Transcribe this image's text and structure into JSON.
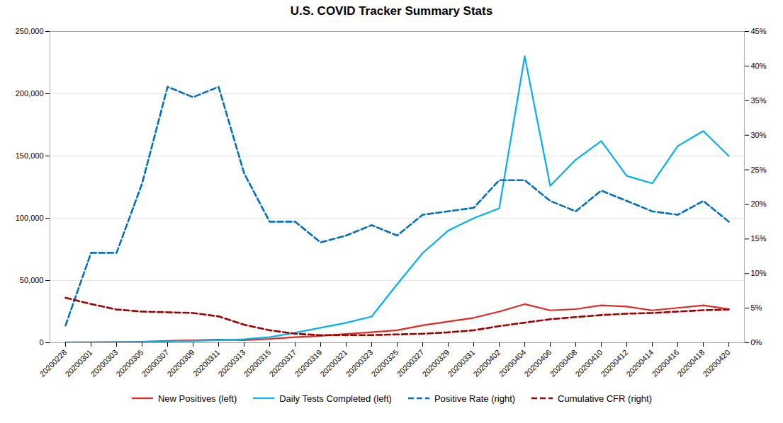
{
  "chart_data": {
    "type": "line",
    "title": "U.S. COVID Tracker Summary Stats",
    "x": [
      "20200228",
      "20200301",
      "20200303",
      "20200305",
      "20200307",
      "20200309",
      "20200311",
      "20200313",
      "20200315",
      "20200317",
      "20200319",
      "20200321",
      "20200323",
      "20200325",
      "20200327",
      "20200329",
      "20200331",
      "20200402",
      "20200404",
      "20200406",
      "20200408",
      "20200410",
      "20200412",
      "20200414",
      "20200416",
      "20200418",
      "20200420"
    ],
    "series": [
      {
        "name": "New Positives (left)",
        "color": "#e8281e",
        "line_style": "solid",
        "values": [
          200,
          300,
          500,
          800,
          1500,
          2000,
          2500,
          2000,
          3000,
          4500,
          5500,
          7000,
          8500,
          10000,
          14000,
          17000,
          20000,
          25000,
          31000,
          26000,
          27000,
          30000,
          29000,
          26000,
          28000,
          30000,
          27000
        ]
      },
      {
        "name": "Daily Tests Completed (left)",
        "color": "#00b0f0",
        "line_style": "solid",
        "values": [
          300,
          400,
          500,
          700,
          1000,
          1500,
          2000,
          2800,
          4500,
          8000,
          12000,
          16000,
          21000,
          47000,
          72000,
          90000,
          100000,
          108000,
          230000,
          126000,
          147000,
          162000,
          134000,
          128000,
          158000,
          170000,
          150000
        ]
      },
      {
        "name": "Positive Rate (right)",
        "color": "#0070c0",
        "line_style": "dashed",
        "axis": "y2",
        "values": [
          0.025,
          0.13,
          0.13,
          0.23,
          0.37,
          0.355,
          0.37,
          0.245,
          0.175,
          0.175,
          0.145,
          0.155,
          0.17,
          0.155,
          0.185,
          0.19,
          0.195,
          0.235,
          0.235,
          0.205,
          0.19,
          0.22,
          0.205,
          0.19,
          0.185,
          0.205,
          0.175
        ]
      },
      {
        "name": "Cumulative CFR (right)",
        "color": "#a00000",
        "line_style": "dashed",
        "axis": "y2",
        "values": [
          0.065,
          0.056,
          0.048,
          0.045,
          0.044,
          0.043,
          0.038,
          0.026,
          0.018,
          0.013,
          0.011,
          0.011,
          0.011,
          0.012,
          0.013,
          0.015,
          0.018,
          0.024,
          0.029,
          0.034,
          0.037,
          0.04,
          0.042,
          0.043,
          0.045,
          0.047,
          0.048
        ]
      }
    ],
    "ylim": [
      0,
      250000
    ],
    "yticks": [
      0,
      {
        "value": 50000,
        "label": "50,000"
      },
      {
        "value": 100000,
        "label": "100,000"
      },
      {
        "value": 150000,
        "label": "150,000"
      },
      {
        "value": 200000,
        "label": "200,000"
      },
      {
        "value": 250000,
        "label": "250,000"
      }
    ],
    "y2lim": [
      0,
      0.45
    ],
    "y2ticks": [
      {
        "value": 0.0,
        "label": "0%"
      },
      {
        "value": 0.05,
        "label": "5%"
      },
      {
        "value": 0.1,
        "label": "10%"
      },
      {
        "value": 0.15,
        "label": "15%"
      },
      {
        "value": 0.2,
        "label": "20%"
      },
      {
        "value": 0.25,
        "label": "25%"
      },
      {
        "value": 0.3,
        "label": "30%"
      },
      {
        "value": 0.35,
        "label": "35%"
      },
      {
        "value": 0.4,
        "label": "40%"
      },
      {
        "value": 0.45,
        "label": "45%"
      }
    ],
    "grid": true,
    "legend": "bottom"
  }
}
